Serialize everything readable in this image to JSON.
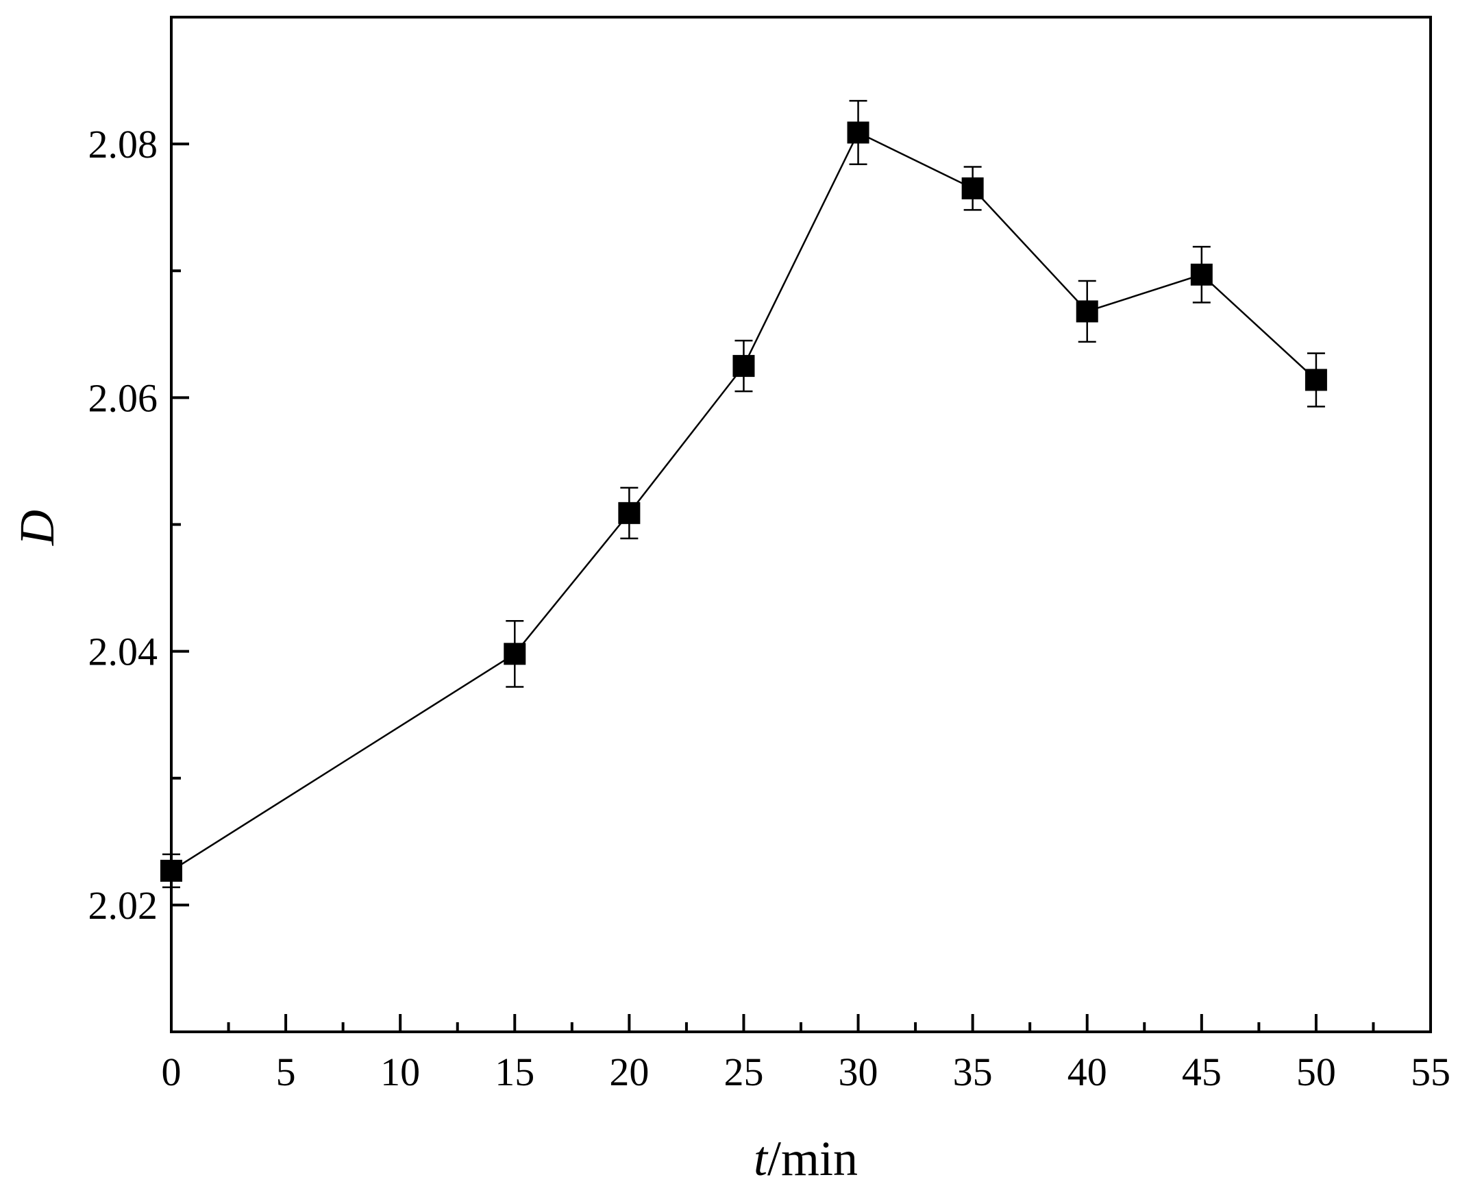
{
  "chart_data": {
    "type": "line",
    "title": "",
    "xlabel_italic": "t",
    "xlabel_unit": "/min",
    "ylabel": "D",
    "xlim": [
      0,
      55
    ],
    "ylim": [
      2.01,
      2.09
    ],
    "x_major_ticks": [
      0,
      5,
      10,
      15,
      20,
      25,
      30,
      35,
      40,
      45,
      50,
      55
    ],
    "x_minor_ticks": [
      2.5,
      7.5,
      12.5,
      17.5,
      22.5,
      27.5,
      32.5,
      37.5,
      42.5,
      47.5,
      52.5
    ],
    "y_major_ticks": [
      2.02,
      2.04,
      2.06,
      2.08
    ],
    "y_minor_ticks": [
      2.03,
      2.05,
      2.07
    ],
    "x_tick_labels": [
      "0",
      "5",
      "10",
      "15",
      "20",
      "25",
      "30",
      "35",
      "40",
      "45",
      "50",
      "55"
    ],
    "y_tick_labels": [
      "2.02",
      "2.04",
      "2.06",
      "2.08"
    ],
    "grid": false,
    "marker": "filled-square",
    "color": "#000000",
    "series": [
      {
        "x": [
          0,
          15,
          20,
          25,
          30,
          35,
          40,
          45,
          50
        ],
        "y": [
          2.0227,
          2.0398,
          2.0509,
          2.0625,
          2.0809,
          2.0765,
          2.0668,
          2.0697,
          2.0614
        ],
        "err": [
          0.0013,
          0.0026,
          0.002,
          0.002,
          0.0025,
          0.0017,
          0.0024,
          0.0022,
          0.0021
        ]
      }
    ]
  }
}
